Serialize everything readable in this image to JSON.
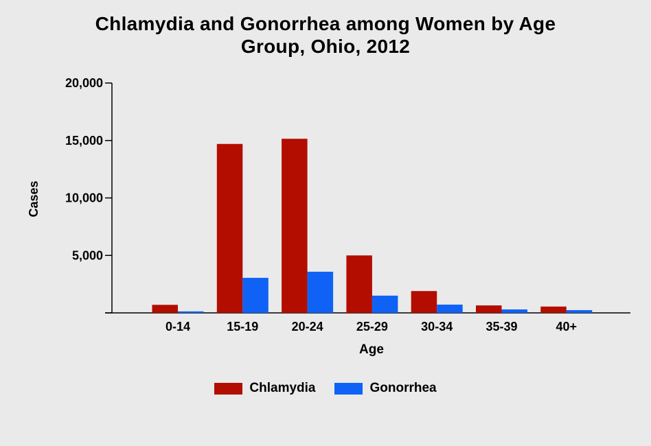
{
  "chart_data": {
    "type": "bar",
    "title_lines": [
      "Chlamydia and Gonorrhea among Women by Age",
      "Group, Ohio, 2012"
    ],
    "xlabel": "Age",
    "ylabel": "Cases",
    "categories": [
      "0-14",
      "15-19",
      "20-24",
      "25-29",
      "30-34",
      "35-39",
      "40+"
    ],
    "ylim": [
      0,
      20000
    ],
    "yticks": [
      0,
      5000,
      10000,
      15000,
      20000
    ],
    "ytick_labels": [
      "",
      "5,000",
      "10,000",
      "15,000",
      "20,000"
    ],
    "series": [
      {
        "name": "Chlamydia",
        "color": "#b30d00",
        "values": [
          700,
          14700,
          15150,
          5000,
          1900,
          650,
          550
        ]
      },
      {
        "name": "Gonorrhea",
        "color": "#0f62f5",
        "values": [
          130,
          3050,
          3580,
          1500,
          720,
          300,
          240
        ]
      }
    ],
    "grid": false,
    "legend_position": "bottom"
  }
}
